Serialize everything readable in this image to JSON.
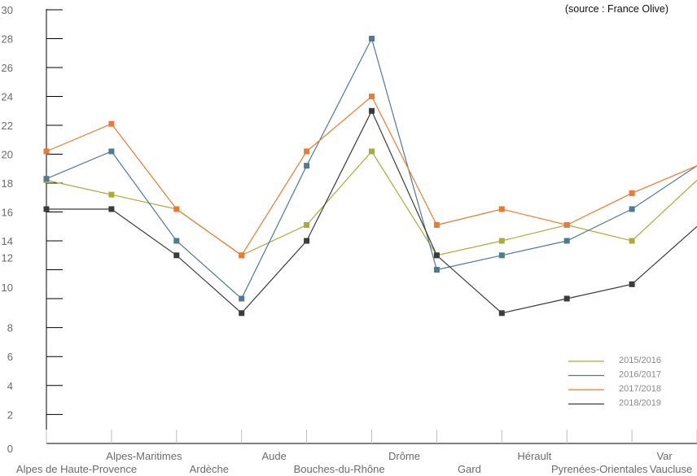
{
  "chart_data": {
    "type": "line",
    "source": "(source : France Olive)",
    "categories": [
      "Alpes de Haute-Provence",
      "Alpes-Maritimes",
      "Ardèche",
      "Aude",
      "Bouches-du-Rhône",
      "Drôme",
      "Gard",
      "Hérault",
      "Pyrenées-Orientales",
      "Var",
      "Vaucluse"
    ],
    "y_ticks": [
      "0",
      "2",
      "4",
      "6",
      "8",
      "10",
      "12",
      "14",
      "16",
      "18",
      "20",
      "22",
      "24",
      "26",
      "28",
      "30"
    ],
    "ylim": [
      0,
      30
    ],
    "grid": false,
    "legend_position": "bottom-right",
    "series": [
      {
        "name": "2015/2016",
        "color": "#a8ad3a",
        "values": [
          18.2,
          17.2,
          16.2,
          13,
          15.1,
          20.2,
          13,
          14,
          15.1,
          14,
          18.2
        ]
      },
      {
        "name": "2016/2017",
        "color": "#4f7a94",
        "values": [
          18.3,
          20.2,
          14,
          10,
          19.2,
          28,
          12,
          13,
          14,
          16.2,
          19.2
        ]
      },
      {
        "name": "2017/2018",
        "color": "#ef7a2f",
        "values": [
          20.2,
          22.1,
          16.2,
          13,
          20.2,
          24,
          15.1,
          16.2,
          15.1,
          17.3,
          19.2
        ]
      },
      {
        "name": "2018/2019",
        "color": "#3b3b3b",
        "values": [
          16.2,
          16.2,
          13,
          9,
          14,
          23,
          13,
          9,
          10,
          11,
          15
        ]
      }
    ]
  }
}
